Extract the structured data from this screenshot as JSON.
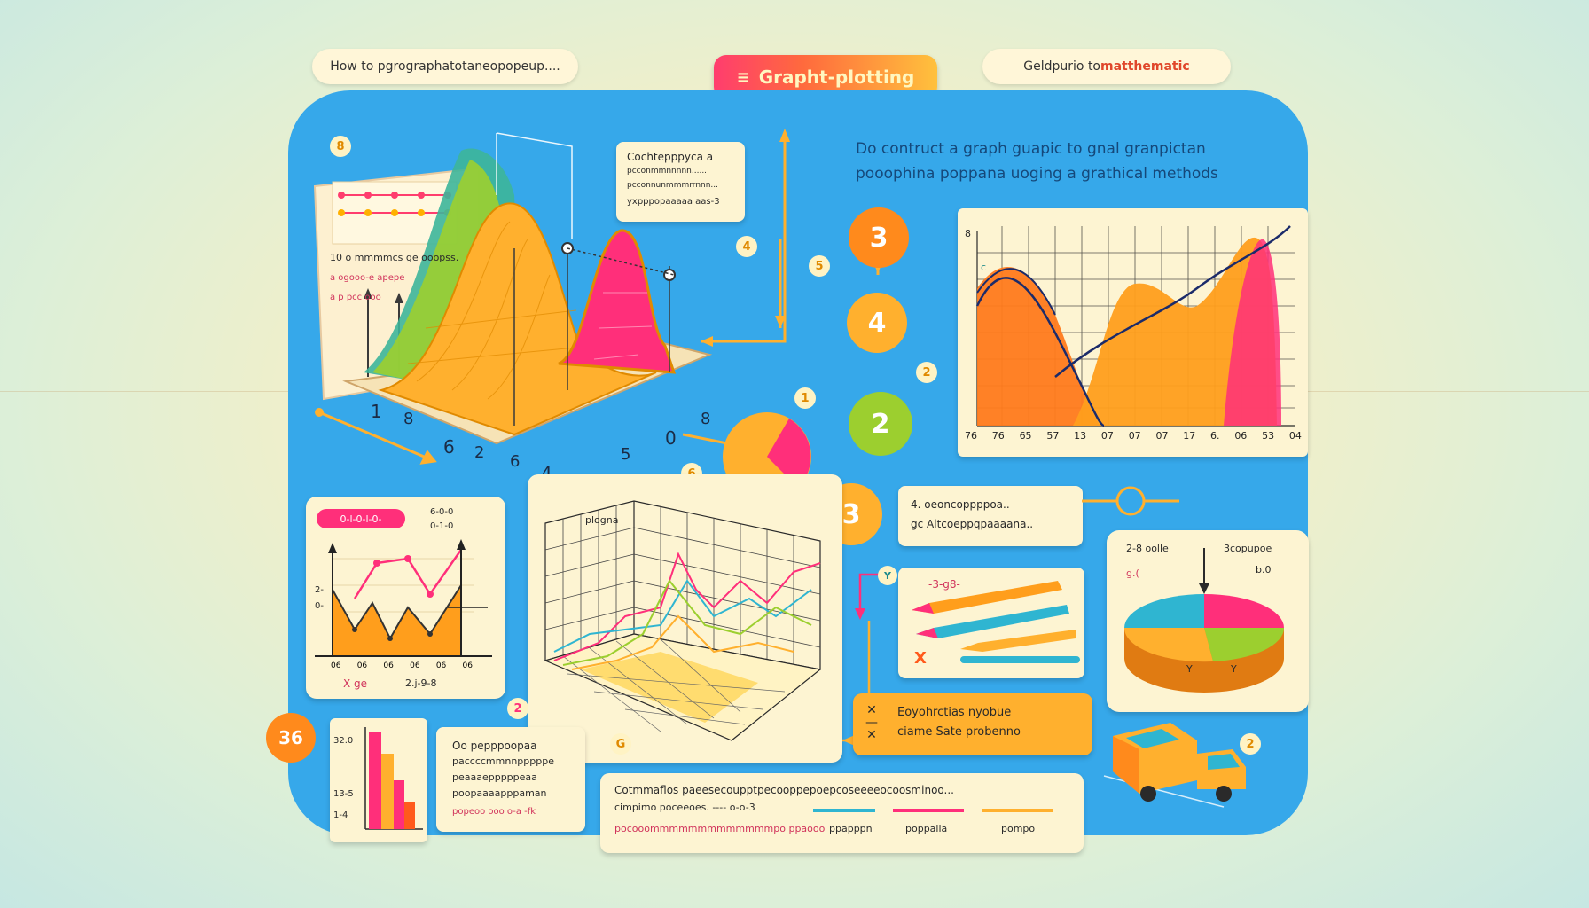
{
  "header": {
    "left_pill": "How to pgrographatotaneopopeup....",
    "center_pill": "Grapht-plotting",
    "center_icon": "menu-icon",
    "right_pill_prefix": "Geldpurio to ",
    "right_pill_accent": "matthematic"
  },
  "intro": {
    "line1": "Do contruct a graph guapic  to gnal granpictan",
    "line2": "pooophina poppana uoging a grathical methods"
  },
  "surface_card": {
    "bubble_l1": "Cochtepppyca a",
    "bubble_l2": "pcconmmnnnnn......",
    "bubble_l3": "pcconnunmmmrrnnn...",
    "bubble_l4": "yxpppopaaaaa aas-3",
    "panel_l1": "10 o mmmmcs  ge ooopss.",
    "panel_l2": "a ogooo-e  apepe",
    "panel_l3": "a p  pcc  ooo",
    "axis_nums": [
      "1",
      "8",
      "6",
      "2",
      "6",
      "4",
      "5",
      "0",
      "8"
    ]
  },
  "flow": {
    "badge_top": "3",
    "badge_mid": "4",
    "badge_low": "2",
    "badge_pie": "3",
    "small": [
      "4",
      "5",
      "2",
      "1",
      "6"
    ]
  },
  "area_chart": {
    "ytick": "8",
    "ytick2": "c",
    "xticks": [
      "76",
      "76",
      "65",
      "57",
      "13",
      "07",
      "07",
      "07",
      "17",
      "6.",
      "06",
      "53",
      "04"
    ]
  },
  "line_card": {
    "label": "0-l-0-l-0-",
    "side1": "6-0-0",
    "side2": "0-1-0",
    "ylab1": "2-",
    "ylab2": "0-",
    "xticks": [
      "06",
      "06",
      "06",
      "06",
      "06",
      "06"
    ],
    "footer_left": "X ge",
    "footer_right": "2.j-9-8"
  },
  "grid3d": {
    "label": "plogna"
  },
  "info_card": {
    "line1": "4.  oeoncoppppoa..",
    "line2": "gc Altcoeppqpaaaana.."
  },
  "pens_card": {
    "label": "-3-g8-",
    "x_mark": "X",
    "y_tag": "Y"
  },
  "pie_card": {
    "label_left": "2-8 oolle",
    "label_left2": "g.(",
    "label_right": "3copupoe",
    "label_right2": "b.0",
    "y_marks": [
      "Y",
      "Y"
    ]
  },
  "orange_card": {
    "line1": "Eoyohrctias nyobue",
    "line2": "ciame Sate probenno"
  },
  "bar_card": {
    "badge": "36",
    "ytick1": "32.0",
    "ytick2": "13-5",
    "ytick3": "1-4",
    "small_badge": "2"
  },
  "text_card": {
    "line1": "Oo pepppoopaa",
    "line2": "paccccmmnnpppppe",
    "line3": "peaaaepppppeaa",
    "line4": "poopaaaapppaman",
    "line5": "popeoo  ooo  o-a  -fk"
  },
  "legend_card": {
    "line1": "Cotmmaflos paeesecoupptpecooppepoepcoseeeeocoosminoo...",
    "line2": "cimpimo poceeoes.  ---- o-o-3",
    "line3": "pocooommmmmmmmmmmmmpo  ppaooo",
    "item1": "ppapppn",
    "item2": "poppaiia",
    "item3": "pompo",
    "small_badge": "G"
  },
  "misc": {
    "badge_extra": "2",
    "badge_top_left": "8",
    "badge_truck": "2"
  },
  "colors": {
    "board": "#36a8ea",
    "card": "#fdf4d2",
    "orange": "#ff9f1c",
    "pink": "#ff3d6e",
    "green": "#9ccf2f",
    "yellow": "#ffc93d"
  }
}
